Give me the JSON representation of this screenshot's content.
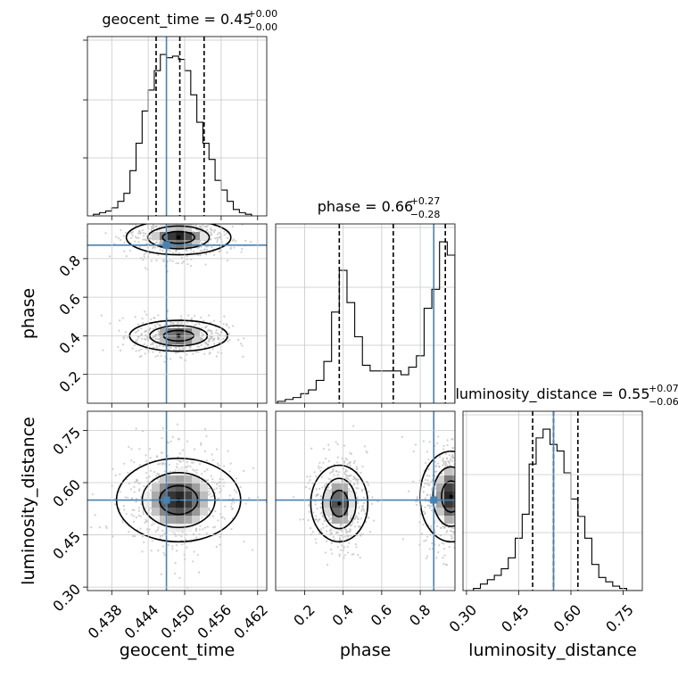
{
  "chart_data": {
    "type": "corner",
    "parameters": [
      "geocent_time",
      "phase",
      "luminosity_distance"
    ],
    "axis_labels": {
      "x": [
        "geocent_time",
        "phase",
        "luminosity_distance"
      ],
      "y": [
        "phase",
        "luminosity_distance"
      ]
    },
    "ranges": {
      "geocent_time": [
        0.434,
        0.4635
      ],
      "phase": [
        0.05,
        0.98
      ],
      "luminosity_distance": [
        0.29,
        0.805
      ]
    },
    "ticks": {
      "geocent_time": [
        "0.438",
        "0.444",
        "0.450",
        "0.456",
        "0.462"
      ],
      "phase": [
        "0.2",
        "0.4",
        "0.6",
        "0.8"
      ],
      "luminosity_distance": [
        "0.30",
        "0.45",
        "0.60",
        "0.75"
      ]
    },
    "truths": {
      "geocent_time": 0.447,
      "phase": 0.87,
      "luminosity_distance": 0.55
    },
    "titles": [
      {
        "param": "geocent_time",
        "text": "geocent_time = 0.45",
        "plus": "+0.00",
        "minus": "−0.00"
      },
      {
        "param": "phase",
        "text": "phase = 0.66",
        "plus": "+0.27",
        "minus": "−0.28"
      },
      {
        "param": "luminosity_distance",
        "text": "luminosity_distance = 0.55",
        "plus": "+0.07",
        "minus": "−0.06"
      }
    ],
    "quantiles": {
      "geocent_time": [
        0.4453,
        0.4492,
        0.4532
      ],
      "phase": [
        0.38,
        0.66,
        0.93
      ],
      "luminosity_distance": [
        0.49,
        0.55,
        0.62
      ]
    },
    "histograms": {
      "geocent_time": {
        "edges": [
          0.435,
          0.436,
          0.437,
          0.438,
          0.439,
          0.44,
          0.441,
          0.442,
          0.443,
          0.444,
          0.445,
          0.446,
          0.447,
          0.448,
          0.449,
          0.45,
          0.451,
          0.452,
          0.453,
          0.454,
          0.455,
          0.456,
          0.457,
          0.458,
          0.459,
          0.46,
          0.461
        ],
        "counts": [
          1,
          2,
          3,
          5,
          9,
          14,
          28,
          45,
          65,
          78,
          90,
          100,
          98,
          99,
          97,
          90,
          75,
          58,
          45,
          35,
          22,
          16,
          9,
          4,
          2,
          1
        ]
      },
      "phase": {
        "edges": [
          0.06,
          0.1,
          0.14,
          0.18,
          0.22,
          0.26,
          0.3,
          0.34,
          0.38,
          0.42,
          0.46,
          0.5,
          0.54,
          0.58,
          0.62,
          0.66,
          0.7,
          0.74,
          0.78,
          0.82,
          0.86,
          0.9,
          0.94,
          0.98
        ],
        "counts": [
          1,
          2,
          3,
          5,
          7,
          12,
          22,
          48,
          70,
          53,
          35,
          20,
          17,
          17,
          17,
          17,
          15,
          19,
          25,
          50,
          60,
          85,
          78
        ]
      },
      "luminosity_distance": {
        "edges": [
          0.3,
          0.32,
          0.34,
          0.36,
          0.38,
          0.4,
          0.42,
          0.44,
          0.46,
          0.48,
          0.5,
          0.52,
          0.54,
          0.56,
          0.58,
          0.6,
          0.62,
          0.64,
          0.66,
          0.68,
          0.7,
          0.72,
          0.74,
          0.76,
          0.78,
          0.8
        ],
        "counts": [
          0,
          1,
          3,
          5,
          7,
          10,
          15,
          24,
          35,
          58,
          70,
          74,
          67,
          64,
          54,
          42,
          34,
          24,
          12,
          6,
          4,
          2,
          1,
          0,
          0
        ]
      }
    },
    "densities": {
      "phase_vs_geocent_time": {
        "modes": [
          {
            "x": 0.449,
            "y": 0.91,
            "sx": 0.0032,
            "sy": 0.045,
            "w": 1.0
          },
          {
            "x": 0.449,
            "y": 0.4,
            "sx": 0.003,
            "sy": 0.04,
            "w": 0.9
          }
        ]
      },
      "luminosity_distance_vs_geocent_time": {
        "modes": [
          {
            "x": 0.449,
            "y": 0.55,
            "sx": 0.0038,
            "sy": 0.06,
            "w": 1.0
          }
        ]
      },
      "luminosity_distance_vs_phase": {
        "modes": [
          {
            "x": 0.38,
            "y": 0.54,
            "sx": 0.055,
            "sy": 0.055,
            "w": 0.9
          },
          {
            "x": 0.96,
            "y": 0.56,
            "sx": 0.06,
            "sy": 0.065,
            "w": 1.0
          }
        ]
      }
    },
    "grid": true,
    "truth_color": "#4682b4",
    "contour_color": "#000000",
    "scatter_color": "#bbbbbb"
  }
}
